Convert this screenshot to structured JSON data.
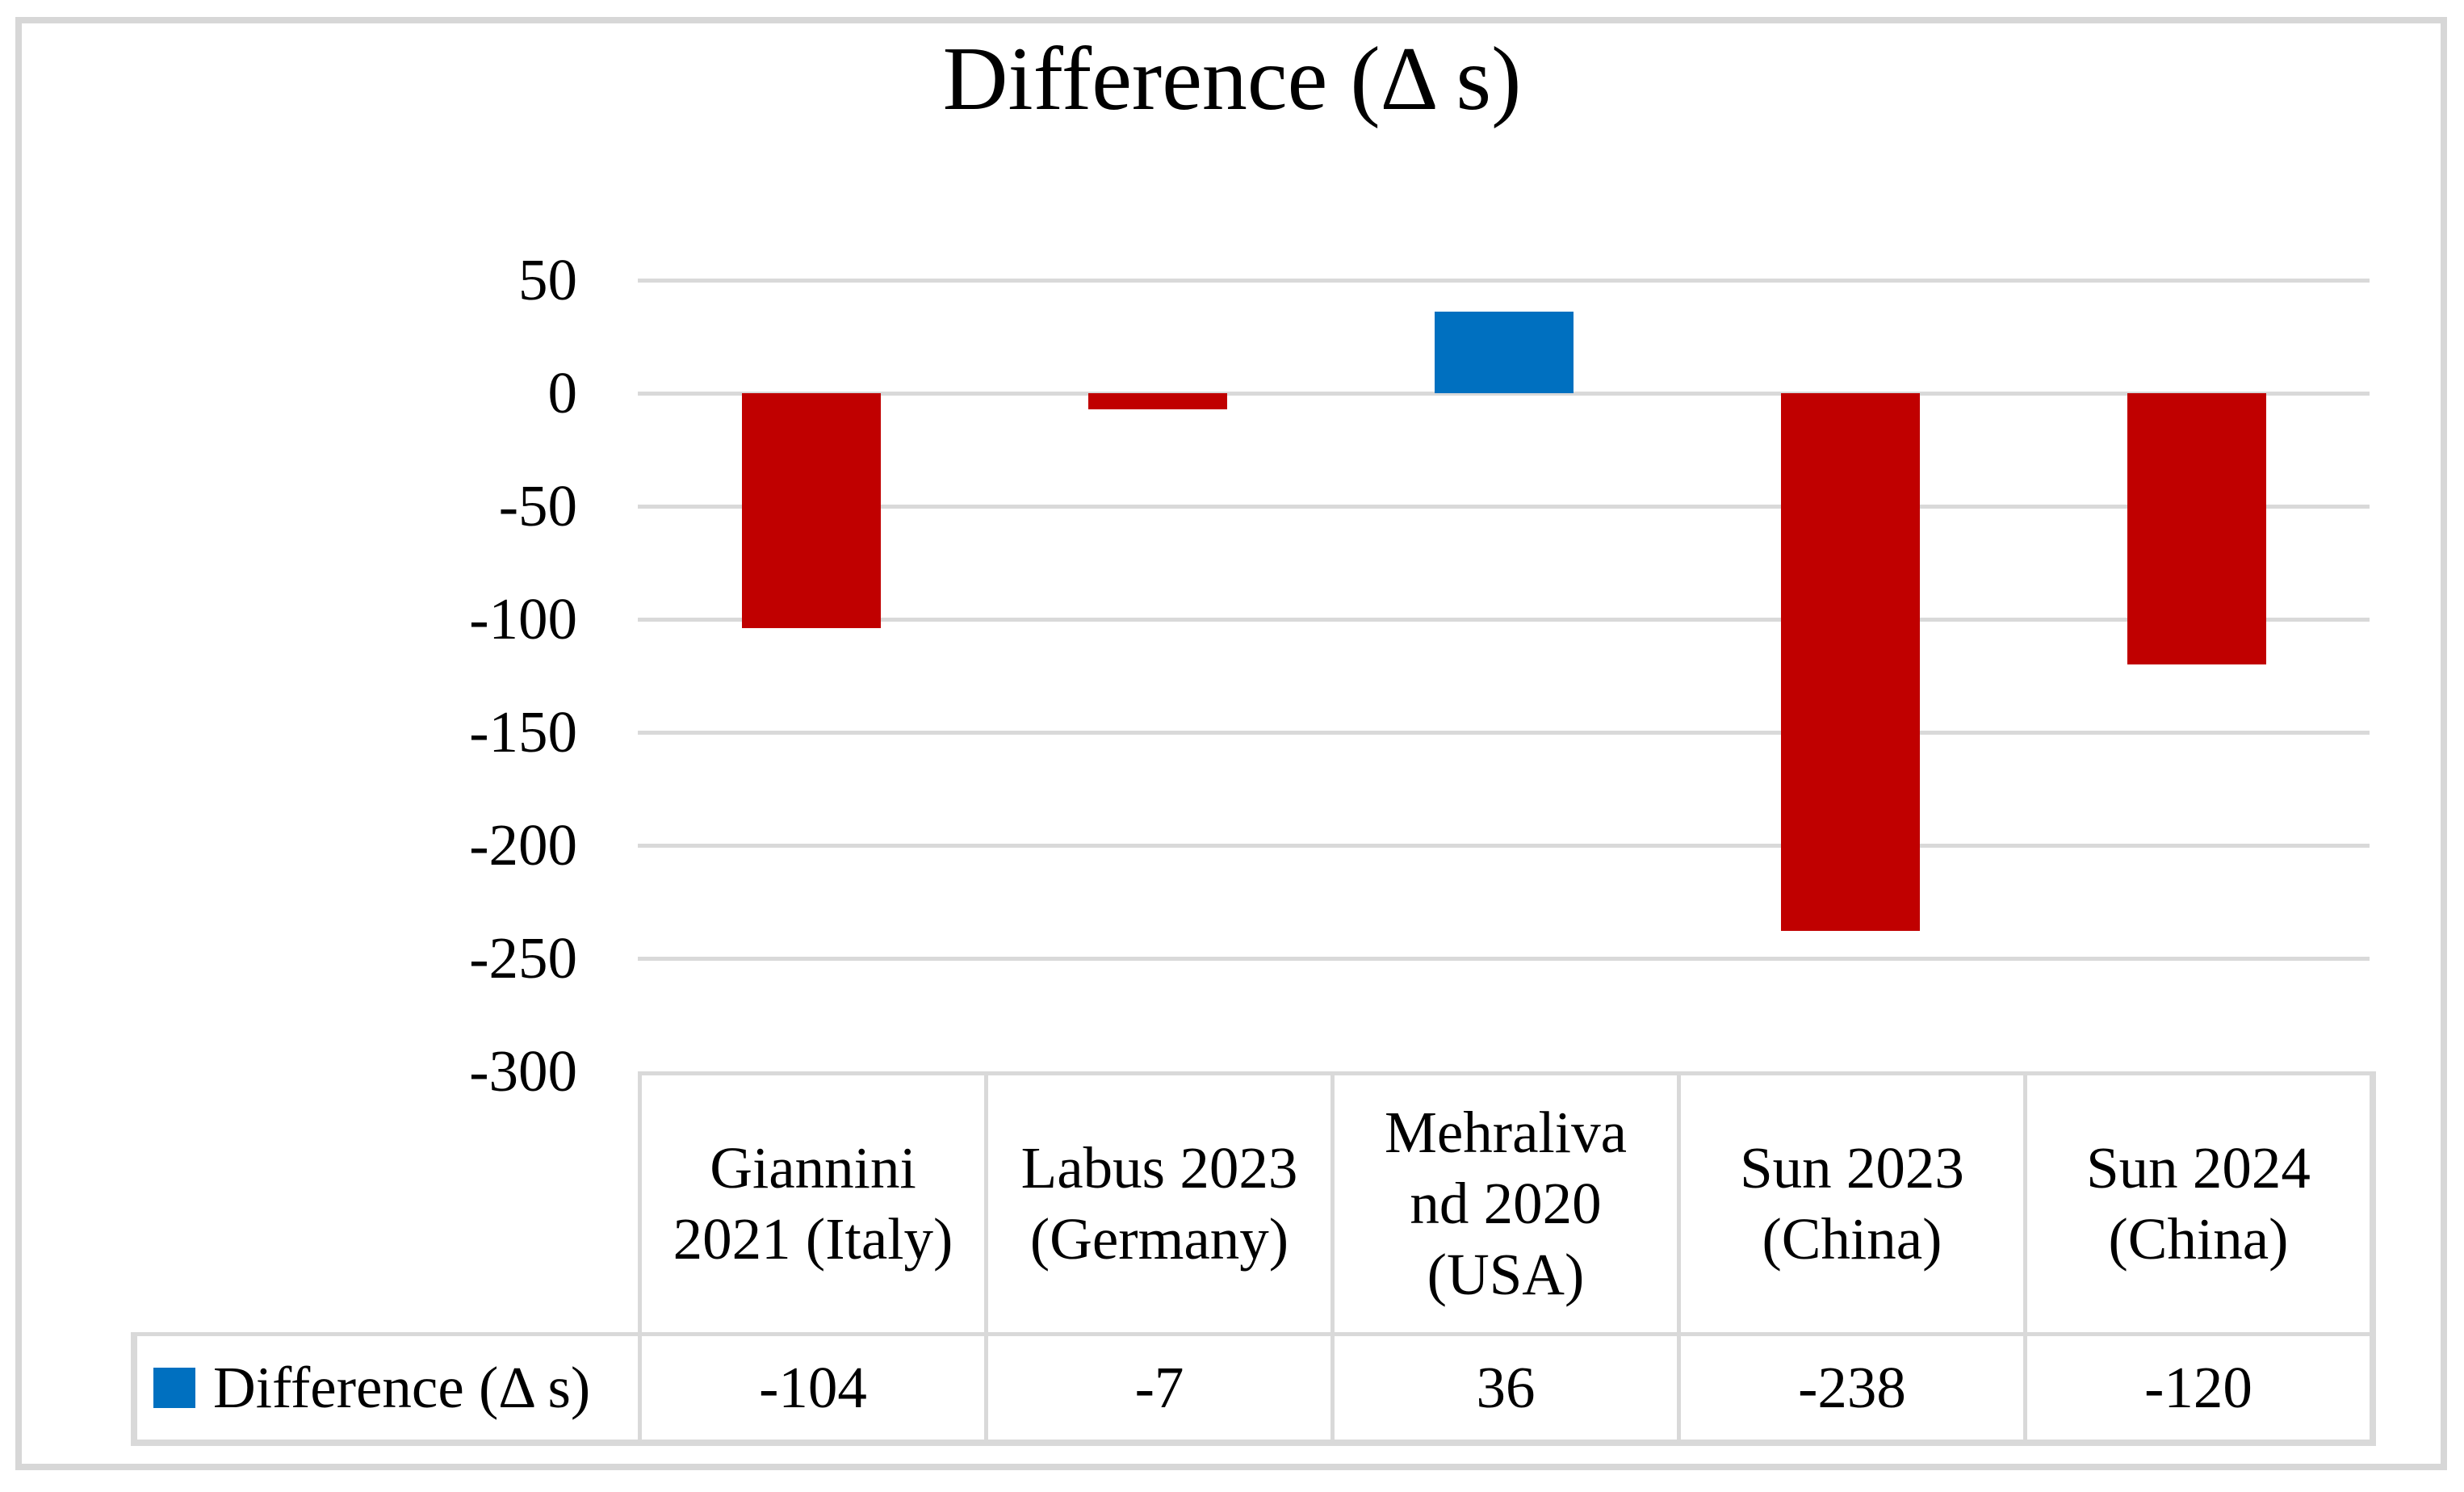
{
  "chart_data": {
    "type": "bar",
    "title": "Difference (Δ s)",
    "categories": [
      "Giannini 2021 (Italy)",
      "Labus 2023 (Germany)",
      "Mehralivand 2020 (USA)",
      "Sun 2023 (China)",
      "Sun 2024 (China)"
    ],
    "categories_display": [
      [
        "Giannini",
        "2021 (Italy)"
      ],
      [
        "Labus 2023",
        "(Germany)"
      ],
      [
        "Mehraliva",
        "nd 2020",
        "(USA)"
      ],
      [
        "Sun 2023",
        "(China)"
      ],
      [
        "Sun 2024",
        "(China)"
      ]
    ],
    "series": [
      {
        "name": "Difference (Δ s)",
        "values": [
          -104,
          -7,
          36,
          -238,
          -120
        ]
      }
    ],
    "xlabel": "",
    "ylabel": "",
    "ylim": [
      -300,
      50
    ],
    "ytick_step": 50,
    "yticks": [
      50,
      0,
      -50,
      -100,
      -150,
      -200,
      -250,
      -300
    ],
    "grid": true,
    "legend_position": "data-table-left",
    "data_table": {
      "legend_label": "Difference (Δ s)",
      "values_display": [
        "-104",
        "-7",
        "36",
        "-238",
        "-120"
      ]
    },
    "colors": {
      "bar_negative": "#C00000",
      "bar_positive": "#0070C0",
      "legend_swatch": "#0070C0",
      "gridline": "#D9D9D9",
      "table_border": "#D9D9D9",
      "outer_frame": "#D7D7D7",
      "text": "#000000"
    }
  }
}
